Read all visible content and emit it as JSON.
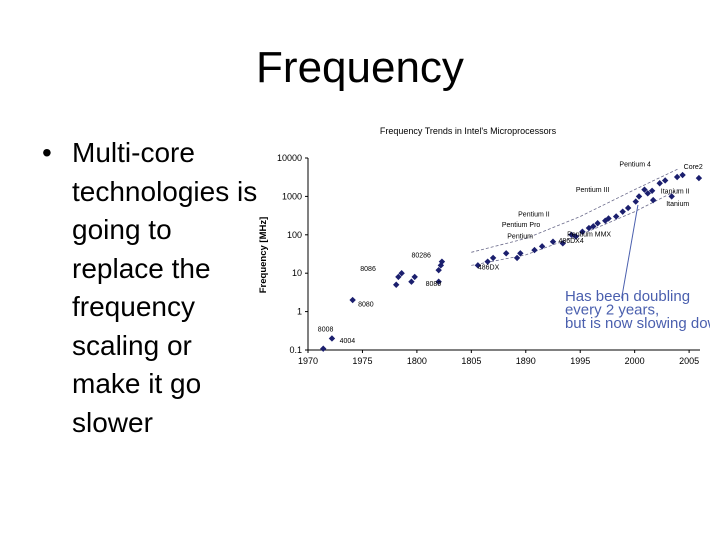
{
  "slide": {
    "title": "Frequency",
    "bullet": "Multi-core technologies is going to replace the frequency scaling or make it go slower"
  },
  "chart_data": {
    "type": "scatter",
    "title": "Frequency Trends in Intel's Microprocessors",
    "xlabel": "",
    "ylabel": "Frequency [MHz]",
    "xlim": [
      1970,
      2006
    ],
    "ylim": [
      0.1,
      10000
    ],
    "yscale": "log",
    "xticks": [
      "1970",
      "1975",
      "1800",
      "1805",
      "1890",
      "1995",
      "2000",
      "2005"
    ],
    "yticks": [
      "0.1",
      "1",
      "10",
      "100",
      "1000",
      "10000"
    ],
    "grid": false,
    "marker_color": "#1b1f6e",
    "series": [
      {
        "points": [
          {
            "x": 1971.4,
            "y": 0.108
          },
          {
            "x": 1972.2,
            "y": 0.2
          },
          {
            "x": 1974.1,
            "y": 2
          },
          {
            "x": 1978.1,
            "y": 5
          },
          {
            "x": 1978.3,
            "y": 8
          },
          {
            "x": 1978.6,
            "y": 10
          },
          {
            "x": 1979.5,
            "y": 6
          },
          {
            "x": 1979.8,
            "y": 8
          },
          {
            "x": 1982,
            "y": 6
          },
          {
            "x": 1982,
            "y": 12
          },
          {
            "x": 1982.2,
            "y": 16
          },
          {
            "x": 1982.3,
            "y": 20
          },
          {
            "x": 1985.6,
            "y": 16
          },
          {
            "x": 1986.5,
            "y": 20
          },
          {
            "x": 1987,
            "y": 25
          },
          {
            "x": 1988.2,
            "y": 33
          },
          {
            "x": 1989.2,
            "y": 25
          },
          {
            "x": 1989.5,
            "y": 33
          },
          {
            "x": 1990.8,
            "y": 40
          },
          {
            "x": 1991.5,
            "y": 50
          },
          {
            "x": 1992.5,
            "y": 66
          },
          {
            "x": 1993.4,
            "y": 60
          },
          {
            "x": 1994.2,
            "y": 100
          },
          {
            "x": 1994.6,
            "y": 90
          },
          {
            "x": 1995.2,
            "y": 120
          },
          {
            "x": 1995.8,
            "y": 150
          },
          {
            "x": 1996.2,
            "y": 166
          },
          {
            "x": 1996.6,
            "y": 200
          },
          {
            "x": 1997.3,
            "y": 233
          },
          {
            "x": 1997.6,
            "y": 266
          },
          {
            "x": 1998.3,
            "y": 300
          },
          {
            "x": 1998.9,
            "y": 400
          },
          {
            "x": 1999.4,
            "y": 500
          },
          {
            "x": 2000.1,
            "y": 733
          },
          {
            "x": 2000.4,
            "y": 1000
          },
          {
            "x": 2000.9,
            "y": 1500
          },
          {
            "x": 2001.2,
            "y": 1200
          },
          {
            "x": 2001.6,
            "y": 1400
          },
          {
            "x": 2001.7,
            "y": 800
          },
          {
            "x": 2002.3,
            "y": 2200
          },
          {
            "x": 2002.8,
            "y": 2600
          },
          {
            "x": 2003.4,
            "y": 1000
          },
          {
            "x": 2003.9,
            "y": 3200
          },
          {
            "x": 2004.4,
            "y": 3600
          },
          {
            "x": 2005.9,
            "y": 3000
          }
        ]
      }
    ],
    "annotations": [
      {
        "text": "8008",
        "x": 1970.9,
        "y": 0.3
      },
      {
        "text": "4004",
        "x": 1972.9,
        "y": 0.15
      },
      {
        "text": "8080",
        "x": 1974.6,
        "y": 1.35
      },
      {
        "text": "8086",
        "x": 1974.8,
        "y": 11.5
      },
      {
        "text": "80286",
        "x": 1979.5,
        "y": 26
      },
      {
        "text": "8080",
        "x": 1980.8,
        "y": 4.6
      },
      {
        "text": "486DX",
        "x": 1985.6,
        "y": 12.5
      },
      {
        "text": "486DX4",
        "x": 1993,
        "y": 62
      },
      {
        "text": "Pentium",
        "x": 1988.3,
        "y": 80
      },
      {
        "text": "Pentium Pro",
        "x": 1987.8,
        "y": 160
      },
      {
        "text": "Pentium II",
        "x": 1989.3,
        "y": 300
      },
      {
        "text": "Pentium MMX",
        "x": 1993.8,
        "y": 90
      },
      {
        "text": "Pentium III",
        "x": 1994.6,
        "y": 1300
      },
      {
        "text": "Pentium 4",
        "x": 1998.6,
        "y": 6000
      },
      {
        "text": "Core2",
        "x": 2004.5,
        "y": 5100
      },
      {
        "text": "Itanium II",
        "x": 2002.4,
        "y": 1200
      },
      {
        "text": "Itanium",
        "x": 2002.9,
        "y": 570
      },
      {
        "text": "Has been doubling",
        "x": 1993.6,
        "y": 1.9,
        "color": "#4a5fae",
        "size": 15
      },
      {
        "text": "every 2 years,",
        "x": 1993.6,
        "y": 0.85,
        "color": "#4a5fae",
        "size": 15
      },
      {
        "text": "but is now slowing down",
        "x": 1993.6,
        "y": 0.37,
        "color": "#4a5fae",
        "size": 15
      }
    ]
  }
}
